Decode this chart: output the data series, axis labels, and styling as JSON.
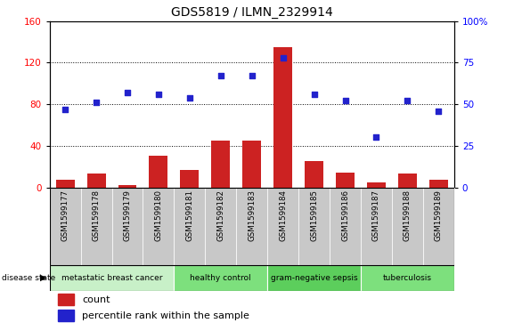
{
  "title": "GDS5819 / ILMN_2329914",
  "samples": [
    "GSM1599177",
    "GSM1599178",
    "GSM1599179",
    "GSM1599180",
    "GSM1599181",
    "GSM1599182",
    "GSM1599183",
    "GSM1599184",
    "GSM1599185",
    "GSM1599186",
    "GSM1599187",
    "GSM1599188",
    "GSM1599189"
  ],
  "counts": [
    7,
    13,
    2,
    30,
    17,
    45,
    45,
    135,
    25,
    14,
    5,
    13,
    7
  ],
  "percentiles": [
    47,
    51,
    57,
    56,
    54,
    67,
    67,
    78,
    56,
    52,
    30,
    52,
    46
  ],
  "disease_groups": [
    {
      "label": "metastatic breast cancer",
      "start": 0,
      "end": 4,
      "color": "#c8f0c8"
    },
    {
      "label": "healthy control",
      "start": 4,
      "end": 7,
      "color": "#7de07d"
    },
    {
      "label": "gram-negative sepsis",
      "start": 7,
      "end": 10,
      "color": "#5cce5c"
    },
    {
      "label": "tuberculosis",
      "start": 10,
      "end": 13,
      "color": "#7de07d"
    }
  ],
  "bar_color": "#cc2222",
  "dot_color": "#2222cc",
  "left_ylim": [
    0,
    160
  ],
  "right_ylim": [
    0,
    100
  ],
  "left_yticks": [
    0,
    40,
    80,
    120,
    160
  ],
  "right_ytick_vals": [
    0,
    25,
    50,
    75,
    100
  ],
  "right_ytick_labels": [
    "0",
    "25",
    "50",
    "75",
    "100%"
  ],
  "bg_color": "#c8c8c8",
  "grid_color": "#000000",
  "grid_lines": [
    40,
    80,
    120
  ]
}
